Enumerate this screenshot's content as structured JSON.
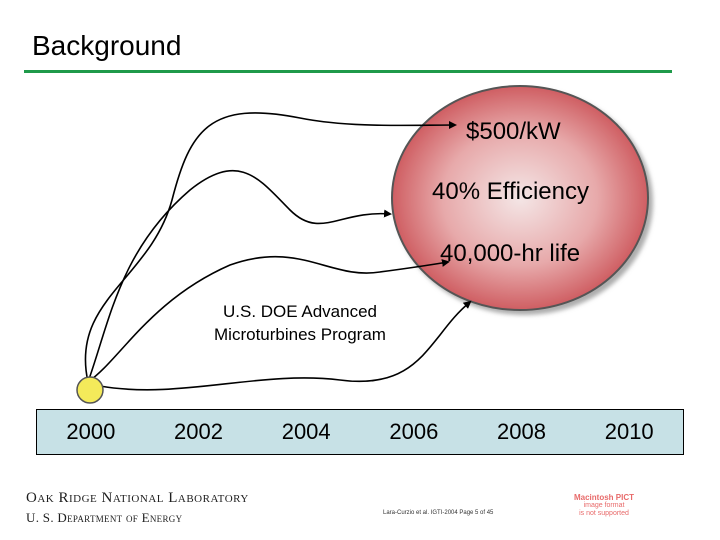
{
  "slide": {
    "title": "Background"
  },
  "goals": {
    "cost": "$500/kW",
    "efficiency": "40% Efficiency",
    "life": "40,000-hr life"
  },
  "program": {
    "line1": "U.S. DOE Advanced",
    "line2": "Microturbines Program"
  },
  "timeline": {
    "years": [
      "2000",
      "2002",
      "2004",
      "2006",
      "2008",
      "2010"
    ]
  },
  "footer": {
    "org": "Oak Ridge National Laboratory",
    "dept": "U. S. Department of Energy",
    "citation": "Lara-Curzio et al.  IGTI-2004  Page 5 of 45",
    "pict_line1": "Macintosh PICT",
    "pict_line2": "image format",
    "pict_line3": "is not supported"
  },
  "colors": {
    "rule": "#1f9a4a",
    "goal_fill": "#d9676a",
    "start_dot": "#f4ea5a",
    "timeline_bg": "#c7e1e6"
  }
}
